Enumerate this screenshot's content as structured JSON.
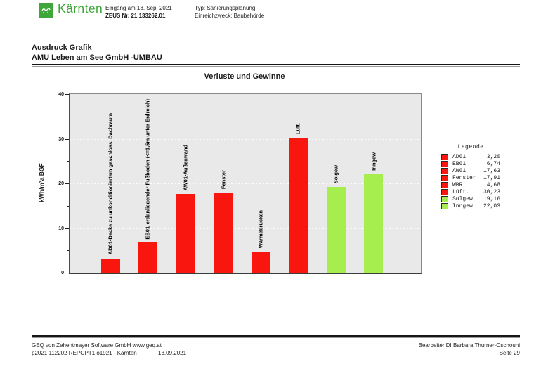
{
  "header": {
    "brand": "Kärnten",
    "received": {
      "line1": "Eingang am 13. Sep. 2021",
      "line2": "ZEUS Nr. 21.133262.01"
    },
    "purpose": {
      "line1": "Typ: Sanierungsplanung",
      "line2": "Einreichzweck: Baubehörde"
    }
  },
  "doc": {
    "title_line1": "Ausdruck Grafik",
    "title_line2": "AMU Leben am See GmbH -UMBAU"
  },
  "chart_data": {
    "type": "bar",
    "title": "Verluste und Gewinne",
    "ylabel": "kWh/m²a BGF",
    "ylim": [
      0,
      40
    ],
    "yticks_major": [
      0,
      10,
      20,
      30,
      40
    ],
    "yticks_minor": [
      5,
      15,
      25,
      35
    ],
    "gridlines": [
      10,
      20,
      30
    ],
    "grid_style": "dotted-white-horizontal",
    "plot_bg": "#e9e9e9",
    "categories": [
      "AD01-Decke zu unkonditioniertem geschloss. Dachraum",
      "EB01-erdanliegender Fußboden (<=1,5m unter Erdreich)",
      "AW01-Außenwand",
      "Fenster",
      "Wärmebrücken",
      "Lüft.",
      "Solgew",
      "Inngew"
    ],
    "values": [
      3.2,
      6.74,
      17.63,
      17.91,
      4.68,
      30.23,
      19.16,
      22.03
    ],
    "bar_colors": [
      "#f9160e",
      "#f9160e",
      "#f9160e",
      "#f9160e",
      "#f9160e",
      "#f9160e",
      "#a5ee4e",
      "#a5ee4e"
    ],
    "accent_loss": "#f9160e",
    "accent_gain": "#a5ee4e",
    "legend": {
      "title": "Legende",
      "position": "right",
      "entries": [
        {
          "label": "AD01",
          "value": "3,20",
          "color": "#f9160e"
        },
        {
          "label": "EB01",
          "value": "6,74",
          "color": "#f9160e"
        },
        {
          "label": "AW01",
          "value": "17,63",
          "color": "#f9160e"
        },
        {
          "label": "Fenster",
          "value": "17,91",
          "color": "#f9160e"
        },
        {
          "label": "WBR",
          "value": "4,68",
          "color": "#f9160e"
        },
        {
          "label": "Lüft.",
          "value": "30,23",
          "color": "#f9160e"
        },
        {
          "label": "Solgew",
          "value": "19,16",
          "color": "#a5ee4e"
        },
        {
          "label": "Inngew",
          "value": "22,03",
          "color": "#a5ee4e"
        }
      ]
    }
  },
  "footer": {
    "left_line1": "GEQ von Zehentmayer Software GmbH www.geq.at",
    "left_line2": "p2021,112202 REPOPT1 o1921 - Kärnten",
    "date": "13.09.2021",
    "right_line1": "Bearbeiter DI Barbara Thurner-Oschouni",
    "right_line2": "Seite 29"
  }
}
